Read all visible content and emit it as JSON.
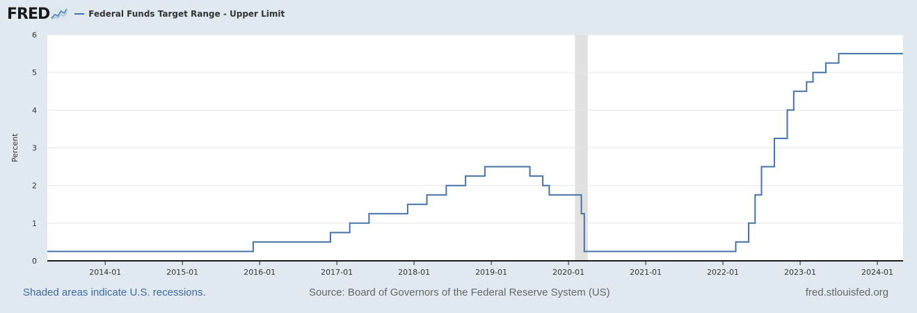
{
  "brand": {
    "logo_text": "FRED",
    "logo_icon": "line-chart-icon"
  },
  "colors": {
    "series": "#4572a7",
    "recession_shade": "#e1e1e1",
    "background": "#e1e9f0",
    "plot_background": "#ffffff",
    "grid": "#e6e6e6"
  },
  "chart_data": {
    "type": "line",
    "step": true,
    "title": "",
    "xlabel": "",
    "ylabel": "Percent",
    "ylim": [
      0,
      6
    ],
    "yticks": [
      0,
      1,
      2,
      3,
      4,
      5,
      6
    ],
    "xlim": [
      "2013-04",
      "2024-05"
    ],
    "xticks": [
      "2014-01",
      "2015-01",
      "2016-01",
      "2017-01",
      "2018-01",
      "2019-01",
      "2020-01",
      "2021-01",
      "2022-01",
      "2023-01",
      "2024-01"
    ],
    "grid": true,
    "recessions": [
      {
        "start": "2020-02",
        "end": "2020-04"
      }
    ],
    "series": [
      {
        "name": "Federal Funds Target Range - Upper Limit",
        "points": [
          [
            "2013-04",
            0.25
          ],
          [
            "2015-12",
            0.5
          ],
          [
            "2016-12",
            0.75
          ],
          [
            "2017-03",
            1.0
          ],
          [
            "2017-06",
            1.25
          ],
          [
            "2017-12",
            1.5
          ],
          [
            "2018-03",
            1.75
          ],
          [
            "2018-06",
            2.0
          ],
          [
            "2018-09",
            2.25
          ],
          [
            "2018-12",
            2.5
          ],
          [
            "2019-07",
            2.25
          ],
          [
            "2019-09",
            2.0
          ],
          [
            "2019-10",
            1.75
          ],
          [
            "2020-03",
            1.25
          ],
          [
            "2020-03-15",
            0.25
          ],
          [
            "2022-03",
            0.5
          ],
          [
            "2022-05",
            1.0
          ],
          [
            "2022-06",
            1.75
          ],
          [
            "2022-07",
            2.5
          ],
          [
            "2022-09",
            3.25
          ],
          [
            "2022-11",
            4.0
          ],
          [
            "2022-12",
            4.5
          ],
          [
            "2023-02",
            4.75
          ],
          [
            "2023-03",
            5.0
          ],
          [
            "2023-05",
            5.25
          ],
          [
            "2023-07",
            5.5
          ],
          [
            "2024-05",
            5.5
          ]
        ]
      }
    ]
  },
  "footer": {
    "recession_note": "Shaded areas indicate U.S. recessions.",
    "source": "Source: Board of Governors of the Federal Reserve System (US)",
    "site": "fred.stlouisfed.org"
  }
}
